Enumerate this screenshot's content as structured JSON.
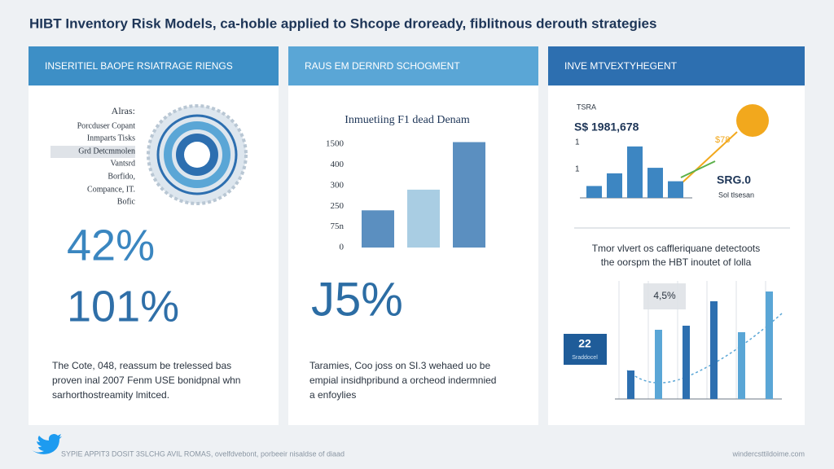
{
  "header": {
    "title": "HIBT Inventory Risk Models, ca-hoble applied to Shcope droready, fiblitnous derouth strategies"
  },
  "panels": [
    {
      "heading": "INSERITIEL BAOPE RSIATRAGE RIENGS",
      "list": [
        "Alras:",
        "Porcduser Copant",
        "Inmparts Tisks",
        "Grd Detcmmolen",
        "Vantsrd",
        "Borfido,",
        "Compance, IT.",
        "Bofic"
      ],
      "stats": [
        "42%",
        "101%"
      ],
      "paragraph": [
        "The Cote, 048, reassum be trelessed bas",
        "proven inal 2007 Fenm USE bonidpnal whn",
        "sarhorthostreamity lmitced."
      ]
    },
    {
      "heading": "RAUS EM DERNRD SCHOGMENT",
      "chart": {
        "title": "Inmuetiing F1 dead Denam",
        "yticks": [
          {
            "value": 0,
            "label": "0"
          },
          {
            "value": 1,
            "label": "75n"
          },
          {
            "value": 2,
            "label": "250"
          },
          {
            "value": 3,
            "label": "300"
          },
          {
            "value": 4,
            "label": "400"
          },
          {
            "value": 5,
            "label": "1500"
          }
        ],
        "ylim": [
          0,
          5.2
        ],
        "values": [
          1.8,
          2.8,
          5.1
        ],
        "colors": [
          "#5b8fc0",
          "#a9cde3",
          "#5b8fc0"
        ]
      },
      "stat": "J5%",
      "paragraph": [
        "Taramies, Coo joss on SI.3 wehaed uo be",
        "empial insidhpribund a orcheod indermnied",
        "a enfoylies"
      ]
    },
    {
      "heading": "INVE MTVEXTYHEGENT",
      "kpi_label": "TSRA",
      "kpi_value": "S$ 1981,678",
      "mini_ticks": [
        "1",
        "1"
      ],
      "mini_chart": {
        "ylim": [
          0,
          70
        ],
        "values": [
          15,
          31,
          65,
          38,
          21
        ],
        "color": "#3d86c2"
      },
      "badge_value": "$78",
      "side_value": "SRG.0",
      "side_label": "Sol tlsesan",
      "caption": [
        "Tmor vlvert os caffleriquane detectoots",
        "the oorspm the HBT inoutet of lolla"
      ],
      "callout": "4,5%",
      "tag_value": "22",
      "tag_label": "Sraddocel",
      "big_chart": {
        "ylim": [
          0,
          140
        ],
        "values": [
          35,
          85,
          90,
          120,
          82,
          132
        ],
        "colors": [
          "#2d6fb0",
          "#5aa6d6",
          "#2d6fb0",
          "#2d6fb0",
          "#5aa6d6",
          "#5aa6d6"
        ]
      }
    }
  ],
  "footer": {
    "left": "SYPIE APPIT3 DOSIT 3SLCHG AVIL ROMAS, ovelfdvebont, porbeeir nisaldse of diaad",
    "right": "windercsttildoime.com"
  }
}
